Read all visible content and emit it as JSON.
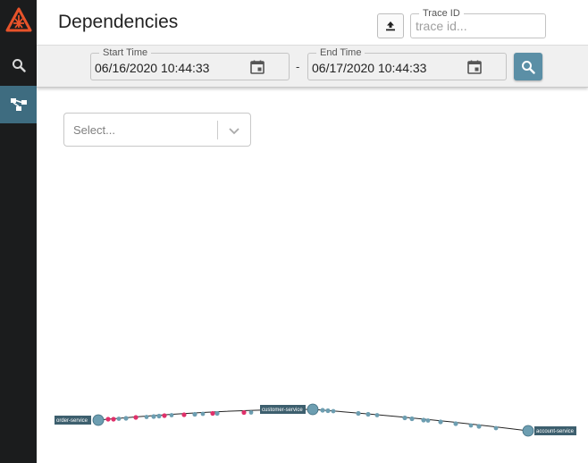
{
  "header": {
    "title": "Dependencies",
    "trace_id_label": "Trace ID",
    "trace_id_placeholder": "trace id..."
  },
  "toolbar": {
    "start_label": "Start Time",
    "start_value": "06/16/2020 10:44:33",
    "end_label": "End Time",
    "end_value": "06/17/2020 10:44:33",
    "separator": "-"
  },
  "filter": {
    "placeholder": "Select..."
  },
  "graph": {
    "nodes": [
      {
        "name": "order-service"
      },
      {
        "name": "customer-service"
      },
      {
        "name": "account-service"
      }
    ]
  },
  "icons": {
    "logo": "zipkin-logo-icon",
    "search_nav": "search-icon",
    "dependencies_nav": "dependency-graph-icon",
    "upload": "upload-icon",
    "calendar": "calendar-icon",
    "search_button": "search-icon",
    "dropdown": "chevron-down-icon"
  },
  "colors": {
    "sidebar": "#1b1c1d",
    "active_nav": "#3e6c80",
    "accent": "#5b8fa6",
    "node": "#6d9eb1",
    "label_bg": "#3d5f6e",
    "error_dot": "#e0306a"
  }
}
